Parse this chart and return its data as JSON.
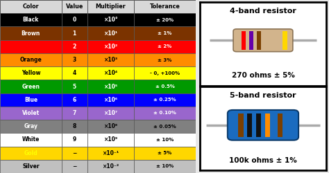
{
  "colors": [
    "Black",
    "Brown",
    "Red",
    "Orange",
    "Yellow",
    "Green",
    "Blue",
    "Violet",
    "Gray",
    "White",
    "Gold",
    "Silver"
  ],
  "bg_colors": [
    "#000000",
    "#7B3300",
    "#FF0000",
    "#FF8C00",
    "#FFFF00",
    "#009900",
    "#0000FF",
    "#9966CC",
    "#808080",
    "#FFFFFF",
    "#FFD700",
    "#C0C0C0"
  ],
  "text_colors": [
    "#FFFFFF",
    "#FFFFFF",
    "#FF0000",
    "#000000",
    "#000000",
    "#FFFFFF",
    "#FFFFFF",
    "#FFFFFF",
    "#FFFFFF",
    "#000000",
    "#FFFF00",
    "#000000"
  ],
  "val_text_colors": [
    "#FFFFFF",
    "#FFFFFF",
    "#FFFFFF",
    "#000000",
    "#000000",
    "#FFFFFF",
    "#FFFFFF",
    "#FFFFFF",
    "#000000",
    "#000000",
    "#000000",
    "#000000"
  ],
  "values": [
    "0",
    "1",
    "2",
    "3",
    "4",
    "5",
    "6",
    "7",
    "8",
    "9",
    "−",
    "−"
  ],
  "multipliers": [
    "×10°",
    "×10¹",
    "×10²",
    "×10³",
    "×10⁴",
    "×10⁵",
    "×10⁶",
    "×10⁷",
    "×10⁸",
    "×10⁹",
    "×10⁻¹",
    "×10⁻²"
  ],
  "tolerances": [
    "± 20%",
    "± 1%",
    "± 2%",
    "± 3%",
    "- 0, +100%",
    "± 0.5%",
    "± 0.25%",
    "± 0.10%",
    "± 0.05%",
    "± 10%",
    "± 5%",
    "± 10%"
  ],
  "col_headers": [
    "Color",
    "Value",
    "Multiplier",
    "Tolerance"
  ],
  "header_bg": "#d8d8d8",
  "band4_title": "4-band resistor",
  "band4_label": "270 ohms ± 5%",
  "band5_title": "5-band resistor",
  "band5_label": "100k ohms ± 1%",
  "band4_body_color": "#D2B48C",
  "band4_body_edge": "#8B7355",
  "band4_bands": [
    "#FF0000",
    "#8B0000",
    "#4B2000",
    "#FFD700"
  ],
  "band5_body_color": "#1A6BBF",
  "band5_body_edge": "#0A3A6B",
  "band5_bands": [
    "#000000",
    "#000000",
    "#FF8C00",
    "#000000",
    "#7B3F00"
  ],
  "lead_color": "#AAAAAA",
  "box_bg": "#FFFFFF",
  "fig_bg": "#E8E8E8"
}
